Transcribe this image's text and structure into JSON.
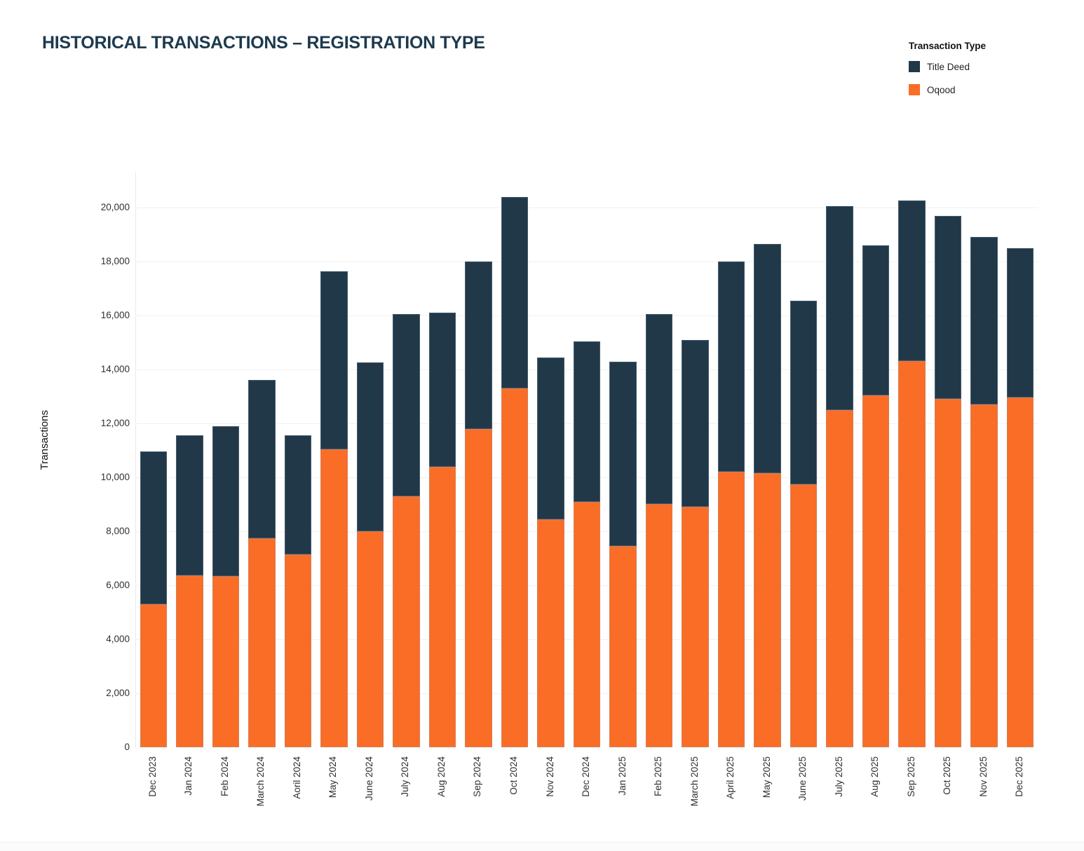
{
  "title": "HISTORICAL TRANSACTIONS – REGISTRATION TYPE",
  "legend": {
    "title": "Transaction Type",
    "items": [
      {
        "label": "Title Deed",
        "color": "#213849"
      },
      {
        "label": "Oqood",
        "color": "#fa6d27"
      }
    ]
  },
  "y_axis": {
    "label": "Transactions",
    "ticks": [
      "0",
      "2,000",
      "4,000",
      "6,000",
      "8,000",
      "10,000",
      "12,000",
      "14,000",
      "16,000",
      "18,000",
      "20,000"
    ]
  },
  "colors": {
    "title_text": "#1d3a4e",
    "title_deed": "#213849",
    "oqood": "#fa6d27",
    "gridline": "#f1f1f1"
  },
  "chart_data": {
    "type": "bar",
    "stacked": true,
    "title": "HISTORICAL TRANSACTIONS – REGISTRATION TYPE",
    "xlabel": "",
    "ylabel": "Transactions",
    "ylim": [
      0,
      21000
    ],
    "ytick_step": 2000,
    "grid": true,
    "legend_position": "top-right",
    "categories": [
      "Dec 2023",
      "Jan 2024",
      "Feb 2024",
      "March 2024",
      "Aoril 2024",
      "May 2024",
      "June 2024",
      "July 2024",
      "Aug 2024",
      "Sep 2024",
      "Oct 2024",
      "Nov 2024",
      "Dec 2024",
      "Jan 2025",
      "Feb 2025",
      "March 2025",
      "April 2025",
      "May 2025",
      "June 2025",
      "July 2025",
      "Aug 2025",
      "Sep 2025",
      "Oct 2025",
      "Nov 2025",
      "Dec 2025"
    ],
    "series": [
      {
        "name": "Oqood",
        "color": "#fa6d27",
        "values": [
          5300,
          6350,
          6350,
          7750,
          7150,
          11050,
          8000,
          9300,
          10400,
          11800,
          13300,
          8450,
          9100,
          7450,
          9000,
          8900,
          10200,
          10150,
          9750,
          12500,
          13050,
          14300,
          12900,
          12700,
          12950
        ]
      },
      {
        "name": "Title Deed",
        "color": "#213849",
        "values": [
          5650,
          5200,
          5550,
          5850,
          4400,
          6600,
          6250,
          6750,
          5700,
          6200,
          7100,
          6000,
          5950,
          6850,
          7050,
          6200,
          7800,
          8500,
          6800,
          7550,
          5550,
          5950,
          6800,
          6200,
          5550
        ]
      }
    ],
    "totals": [
      10950,
      11550,
      11900,
      13600,
      11550,
      17650,
      14250,
      16050,
      16100,
      18000,
      20400,
      14450,
      15050,
      14300,
      16050,
      15100,
      18000,
      18650,
      16550,
      20050,
      18600,
      20250,
      19700,
      18900,
      18500
    ]
  }
}
